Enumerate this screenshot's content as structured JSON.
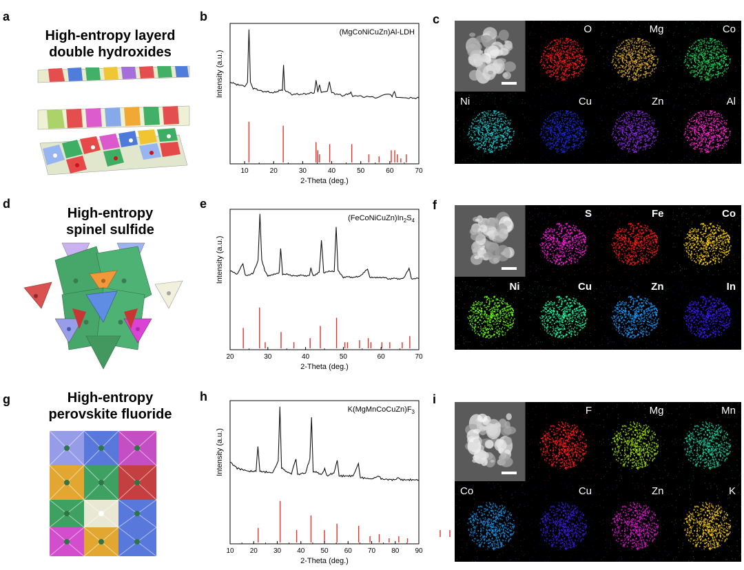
{
  "panels": {
    "a": {
      "label": "a",
      "title_line1": "High-entropy layerd",
      "title_line2": "double hydroxides"
    },
    "b": {
      "label": "b"
    },
    "c": {
      "label": "c"
    },
    "d": {
      "label": "d",
      "title_line1": "High-entropy",
      "title_line2": "spinel sulfide"
    },
    "e": {
      "label": "e"
    },
    "f": {
      "label": "f"
    },
    "g": {
      "label": "g",
      "title_line1": "High-entropy",
      "title_line2": "perovskite fluoride"
    },
    "h": {
      "label": "h"
    },
    "i": {
      "label": "i"
    }
  },
  "chart_data": [
    {
      "type": "line",
      "panel": "b",
      "annotation": "(MgCoNiCuZn)Al-LDH",
      "xlabel": "2-Theta (deg.)",
      "ylabel": "Intensity (a.u.)",
      "xlim": [
        5,
        70
      ],
      "xticks": [
        10,
        20,
        30,
        40,
        50,
        60,
        70
      ],
      "series": [
        {
          "values": [
            [
              5,
              0.3
            ],
            [
              8,
              0.26
            ],
            [
              10,
              0.24
            ],
            [
              11,
              0.3
            ],
            [
              11.5,
              1.0
            ],
            [
              12,
              0.3
            ],
            [
              13,
              0.22
            ],
            [
              16,
              0.18
            ],
            [
              20,
              0.16
            ],
            [
              23,
              0.2
            ],
            [
              23.4,
              0.52
            ],
            [
              23.8,
              0.2
            ],
            [
              26,
              0.14
            ],
            [
              30,
              0.14
            ],
            [
              34,
              0.16
            ],
            [
              34.6,
              0.32
            ],
            [
              35.2,
              0.18
            ],
            [
              35.8,
              0.26
            ],
            [
              36.4,
              0.16
            ],
            [
              38.5,
              0.18
            ],
            [
              39.2,
              0.3
            ],
            [
              40,
              0.16
            ],
            [
              44,
              0.12
            ],
            [
              46.6,
              0.16
            ],
            [
              47.2,
              0.12
            ],
            [
              55,
              0.1
            ],
            [
              60.2,
              0.14
            ],
            [
              60.8,
              0.1
            ],
            [
              61.6,
              0.18
            ],
            [
              62.2,
              0.1
            ],
            [
              66,
              0.09
            ],
            [
              70,
              0.09
            ]
          ]
        }
      ],
      "reference_peaks": [
        [
          11.5,
          1.0
        ],
        [
          23.3,
          0.9
        ],
        [
          34.6,
          0.5
        ],
        [
          35.2,
          0.3
        ],
        [
          35.8,
          0.2
        ],
        [
          39.3,
          0.45
        ],
        [
          46.9,
          0.45
        ],
        [
          52.8,
          0.2
        ],
        [
          56.3,
          0.15
        ],
        [
          60.5,
          0.3
        ],
        [
          61.7,
          0.3
        ],
        [
          62.6,
          0.2
        ],
        [
          63.8,
          0.1
        ],
        [
          65.7,
          0.2
        ]
      ]
    },
    {
      "type": "line",
      "panel": "e",
      "annotation_main": "(FeCoNiCuZn)In",
      "annotation_sub1": "2",
      "annotation_mid": "S",
      "annotation_sub2": "4",
      "xlabel": "2-Theta (deg.)",
      "ylabel": "Intensity (a.u.)",
      "xlim": [
        20,
        70
      ],
      "xticks": [
        20,
        30,
        40,
        50,
        60,
        70
      ],
      "series": [
        {
          "values": [
            [
              20,
              0.26
            ],
            [
              22,
              0.22
            ],
            [
              23.4,
              0.36
            ],
            [
              24,
              0.2
            ],
            [
              26,
              0.22
            ],
            [
              27.4,
              0.4
            ],
            [
              27.9,
              1.0
            ],
            [
              28.4,
              0.4
            ],
            [
              29.2,
              0.26
            ],
            [
              30,
              0.2
            ],
            [
              33,
              0.24
            ],
            [
              33.4,
              0.56
            ],
            [
              33.9,
              0.22
            ],
            [
              37,
              0.2
            ],
            [
              41,
              0.2
            ],
            [
              41.4,
              0.3
            ],
            [
              42,
              0.2
            ],
            [
              43.6,
              0.24
            ],
            [
              44.2,
              0.66
            ],
            [
              44.8,
              0.24
            ],
            [
              47.6,
              0.26
            ],
            [
              48.1,
              0.84
            ],
            [
              48.6,
              0.26
            ],
            [
              50,
              0.18
            ],
            [
              54,
              0.18
            ],
            [
              56.4,
              0.28
            ],
            [
              57,
              0.18
            ],
            [
              60,
              0.18
            ],
            [
              62,
              0.16
            ],
            [
              66,
              0.16
            ],
            [
              67.4,
              0.3
            ],
            [
              68,
              0.16
            ],
            [
              70,
              0.16
            ]
          ]
        }
      ],
      "reference_peaks": [
        [
          23.5,
          0.5
        ],
        [
          27.8,
          1.0
        ],
        [
          29.3,
          0.15
        ],
        [
          33.5,
          0.4
        ],
        [
          36.9,
          0.15
        ],
        [
          41.2,
          0.25
        ],
        [
          43.9,
          0.55
        ],
        [
          48.2,
          0.75
        ],
        [
          50.4,
          0.15
        ],
        [
          51.1,
          0.15
        ],
        [
          54.3,
          0.2
        ],
        [
          56.6,
          0.25
        ],
        [
          57.3,
          0.15
        ],
        [
          60.2,
          0.15
        ],
        [
          62.3,
          0.15
        ],
        [
          65.6,
          0.15
        ],
        [
          67.6,
          0.3
        ]
      ]
    },
    {
      "type": "line",
      "panel": "h",
      "annotation_main": "K(MgMnCoCuZn)F",
      "annotation_sub1": "3",
      "xlabel": "2-Theta (deg.)",
      "ylabel": "Intensity (a.u.)",
      "xlim": [
        10,
        90
      ],
      "xticks": [
        10,
        20,
        30,
        40,
        50,
        60,
        70,
        80,
        90
      ],
      "series": [
        {
          "values": [
            [
              10,
              0.28
            ],
            [
              13,
              0.2
            ],
            [
              18,
              0.16
            ],
            [
              21,
              0.16
            ],
            [
              21.8,
              0.48
            ],
            [
              22.6,
              0.16
            ],
            [
              28,
              0.14
            ],
            [
              30.4,
              0.3
            ],
            [
              31.1,
              1.0
            ],
            [
              31.8,
              0.2
            ],
            [
              36,
              0.12
            ],
            [
              37.9,
              0.32
            ],
            [
              38.6,
              0.12
            ],
            [
              42,
              0.14
            ],
            [
              43.8,
              0.32
            ],
            [
              44.5,
              0.86
            ],
            [
              45.2,
              0.16
            ],
            [
              49,
              0.12
            ],
            [
              50.1,
              0.2
            ],
            [
              51,
              0.1
            ],
            [
              54,
              0.14
            ],
            [
              55.4,
              0.3
            ],
            [
              56.2,
              0.1
            ],
            [
              62,
              0.1
            ],
            [
              64.4,
              0.26
            ],
            [
              65.2,
              0.08
            ],
            [
              70,
              0.06
            ],
            [
              73.1,
              0.1
            ],
            [
              74,
              0.06
            ],
            [
              80,
              0.05
            ],
            [
              81.6,
              0.08
            ],
            [
              82.4,
              0.05
            ],
            [
              90,
              0.05
            ]
          ]
        }
      ],
      "reference_peaks": [
        [
          21.9,
          0.35
        ],
        [
          31.2,
          1.0
        ],
        [
          38.2,
          0.3
        ],
        [
          44.3,
          0.65
        ],
        [
          50.0,
          0.3
        ],
        [
          55.3,
          0.45
        ],
        [
          64.5,
          0.4
        ],
        [
          69.3,
          0.15
        ],
        [
          73.2,
          0.2
        ],
        [
          77.4,
          0.1
        ],
        [
          81.5,
          0.15
        ],
        [
          85.2,
          0.1
        ]
      ]
    }
  ],
  "eds": {
    "c": {
      "tiles": [
        {
          "element": "",
          "color": "#d9d9d9",
          "kind": "sem"
        },
        {
          "element": "O",
          "color": "#ff1a1a"
        },
        {
          "element": "Mg",
          "color": "#e0b030"
        },
        {
          "element": "Co",
          "color": "#1ed65a"
        },
        {
          "element": "Ni",
          "color": "#1ccad0"
        },
        {
          "element": "Cu",
          "color": "#1a2dd6"
        },
        {
          "element": "Zn",
          "color": "#8a2be2"
        },
        {
          "element": "Al",
          "color": "#ff2ad4"
        }
      ]
    },
    "f": {
      "tiles": [
        {
          "element": "",
          "color": "#cfcfcf",
          "kind": "sem"
        },
        {
          "element": "S",
          "color": "#ff1ee0"
        },
        {
          "element": "Fe",
          "color": "#ff1a1a"
        },
        {
          "element": "Co",
          "color": "#ffd400"
        },
        {
          "element": "Ni",
          "color": "#6aff1a"
        },
        {
          "element": "Cu",
          "color": "#1affa8"
        },
        {
          "element": "Zn",
          "color": "#1a9cff"
        },
        {
          "element": "In",
          "color": "#3a1aff"
        }
      ]
    },
    "i": {
      "tiles": [
        {
          "element": "",
          "color": "#e6e6e6",
          "kind": "sem"
        },
        {
          "element": "F",
          "color": "#ff1a1a"
        },
        {
          "element": "Mg",
          "color": "#9ad614"
        },
        {
          "element": "Mn",
          "color": "#1ac89a"
        },
        {
          "element": "Co",
          "color": "#1a8ee0"
        },
        {
          "element": "Cu",
          "color": "#3a1ad6"
        },
        {
          "element": "Zn",
          "color": "#d41ac8"
        },
        {
          "element": "K",
          "color": "#f0c814"
        }
      ]
    }
  },
  "colors": {
    "ref_peak": "#e0302a",
    "curve": "#111111"
  }
}
